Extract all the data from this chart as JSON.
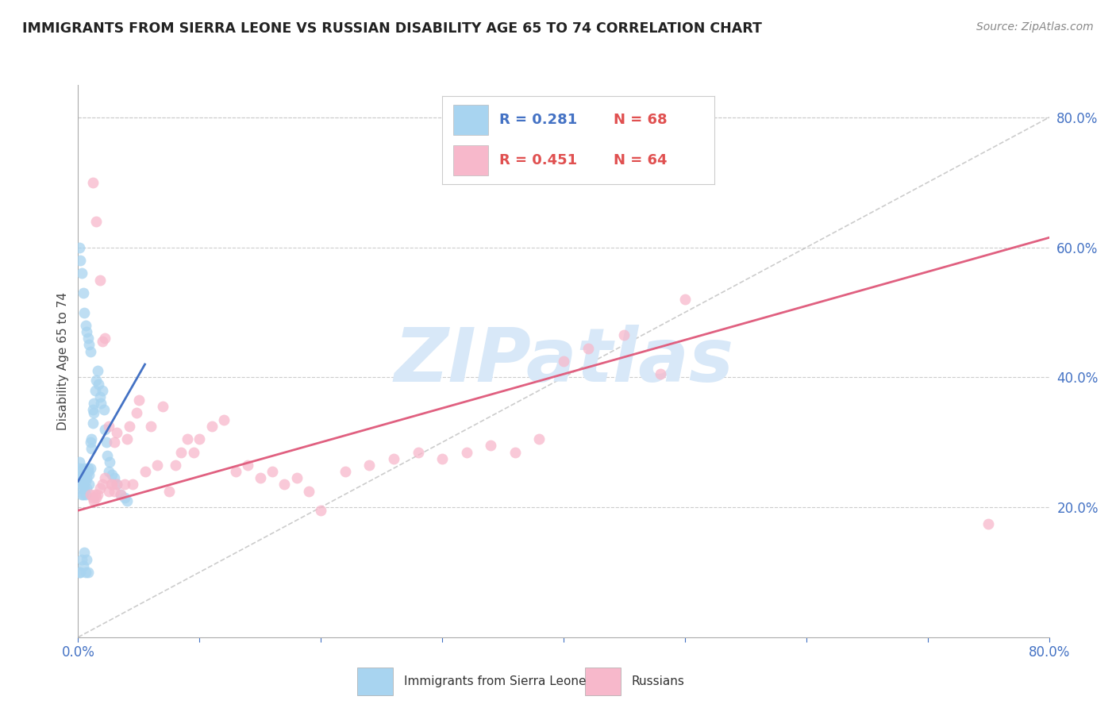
{
  "title": "IMMIGRANTS FROM SIERRA LEONE VS RUSSIAN DISABILITY AGE 65 TO 74 CORRELATION CHART",
  "source": "Source: ZipAtlas.com",
  "ylabel": "Disability Age 65 to 74",
  "watermark": "ZIPatlas",
  "legend_blue_r": "R = 0.281",
  "legend_blue_n": "N = 68",
  "legend_pink_r": "R = 0.451",
  "legend_pink_n": "N = 64",
  "legend_label_blue": "Immigrants from Sierra Leone",
  "legend_label_pink": "Russians",
  "xlim": [
    0.0,
    0.8
  ],
  "ylim": [
    0.0,
    0.85
  ],
  "xtick_values": [
    0.0,
    0.1,
    0.2,
    0.3,
    0.4,
    0.5,
    0.6,
    0.7,
    0.8
  ],
  "xtick_labeled": [
    0.0,
    0.8
  ],
  "xtick_label_texts": [
    "0.0%",
    "80.0%"
  ],
  "ytick_values_right": [
    0.2,
    0.4,
    0.6,
    0.8
  ],
  "ytick_labels_right": [
    "20.0%",
    "40.0%",
    "60.0%",
    "80.0%"
  ],
  "color_blue": "#a8d4f0",
  "color_pink": "#f7b8cb",
  "color_blue_line": "#4472c4",
  "color_pink_line": "#e06080",
  "color_axis_labels": "#4472c4",
  "color_title": "#222222",
  "color_source": "#888888",
  "color_watermark": "#d8e8f8",
  "color_grid": "#cccccc",
  "blue_dots_x": [
    0.001,
    0.001,
    0.002,
    0.002,
    0.002,
    0.003,
    0.003,
    0.003,
    0.004,
    0.004,
    0.004,
    0.005,
    0.005,
    0.005,
    0.006,
    0.006,
    0.006,
    0.007,
    0.007,
    0.008,
    0.008,
    0.009,
    0.009,
    0.01,
    0.01,
    0.011,
    0.011,
    0.012,
    0.012,
    0.013,
    0.013,
    0.014,
    0.015,
    0.016,
    0.017,
    0.018,
    0.019,
    0.02,
    0.021,
    0.022,
    0.023,
    0.024,
    0.025,
    0.026,
    0.028,
    0.03,
    0.032,
    0.035,
    0.038,
    0.04,
    0.001,
    0.002,
    0.003,
    0.004,
    0.005,
    0.006,
    0.007,
    0.008,
    0.009,
    0.01,
    0.001,
    0.002,
    0.003,
    0.004,
    0.005,
    0.006,
    0.007,
    0.008
  ],
  "blue_dots_y": [
    0.27,
    0.26,
    0.255,
    0.245,
    0.24,
    0.23,
    0.22,
    0.235,
    0.25,
    0.22,
    0.24,
    0.245,
    0.26,
    0.23,
    0.22,
    0.255,
    0.24,
    0.245,
    0.23,
    0.26,
    0.255,
    0.235,
    0.25,
    0.3,
    0.26,
    0.29,
    0.305,
    0.33,
    0.35,
    0.345,
    0.36,
    0.38,
    0.395,
    0.41,
    0.39,
    0.37,
    0.36,
    0.38,
    0.35,
    0.32,
    0.3,
    0.28,
    0.255,
    0.27,
    0.25,
    0.245,
    0.235,
    0.22,
    0.215,
    0.21,
    0.6,
    0.58,
    0.56,
    0.53,
    0.5,
    0.48,
    0.47,
    0.46,
    0.45,
    0.44,
    0.1,
    0.1,
    0.12,
    0.11,
    0.13,
    0.1,
    0.12,
    0.1
  ],
  "pink_dots_x": [
    0.01,
    0.012,
    0.013,
    0.014,
    0.015,
    0.016,
    0.018,
    0.02,
    0.022,
    0.025,
    0.027,
    0.03,
    0.032,
    0.035,
    0.038,
    0.04,
    0.042,
    0.045,
    0.048,
    0.05,
    0.055,
    0.06,
    0.065,
    0.07,
    0.075,
    0.08,
    0.085,
    0.09,
    0.095,
    0.1,
    0.11,
    0.12,
    0.13,
    0.14,
    0.15,
    0.16,
    0.17,
    0.18,
    0.19,
    0.2,
    0.22,
    0.24,
    0.26,
    0.28,
    0.3,
    0.32,
    0.34,
    0.36,
    0.38,
    0.4,
    0.42,
    0.45,
    0.48,
    0.012,
    0.015,
    0.018,
    0.02,
    0.022,
    0.025,
    0.028,
    0.03,
    0.032,
    0.75,
    0.5
  ],
  "pink_dots_y": [
    0.22,
    0.215,
    0.21,
    0.22,
    0.215,
    0.22,
    0.23,
    0.235,
    0.245,
    0.225,
    0.235,
    0.3,
    0.315,
    0.22,
    0.235,
    0.305,
    0.325,
    0.235,
    0.345,
    0.365,
    0.255,
    0.325,
    0.265,
    0.355,
    0.225,
    0.265,
    0.285,
    0.305,
    0.285,
    0.305,
    0.325,
    0.335,
    0.255,
    0.265,
    0.245,
    0.255,
    0.235,
    0.245,
    0.225,
    0.195,
    0.255,
    0.265,
    0.275,
    0.285,
    0.275,
    0.285,
    0.295,
    0.285,
    0.305,
    0.425,
    0.445,
    0.465,
    0.405,
    0.7,
    0.64,
    0.55,
    0.455,
    0.46,
    0.325,
    0.235,
    0.225,
    0.235,
    0.175,
    0.52
  ],
  "blue_line_x": [
    0.0,
    0.055
  ],
  "blue_line_y": [
    0.24,
    0.42
  ],
  "pink_line_x": [
    0.0,
    0.8
  ],
  "pink_line_y": [
    0.195,
    0.615
  ],
  "dashed_line_x": [
    0.0,
    0.85
  ],
  "dashed_line_y": [
    0.0,
    0.85
  ]
}
